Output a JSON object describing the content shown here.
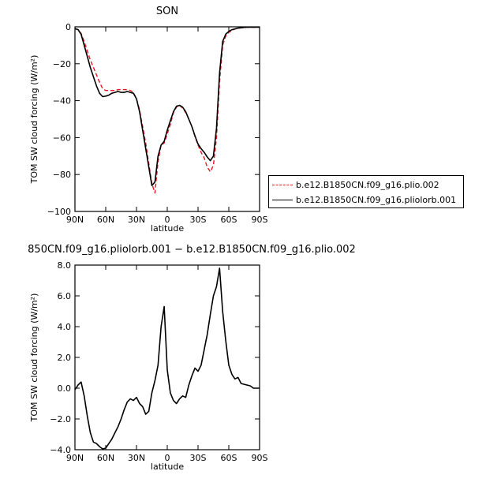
{
  "figure": {
    "title": "SON",
    "diff_title": "850CN.f09_g16.pliolorb.001 − b.e12.B1850CN.f09_g16.plio.002"
  },
  "legend": {
    "items": [
      {
        "label": "b.e12.B1850CN.f09_g16.plio.002",
        "style": "dashed",
        "color": "#e8141e"
      },
      {
        "label": "b.e12.B1850CN.f09_g16.pliolorb.001",
        "style": "solid",
        "color": "#000000"
      }
    ]
  },
  "chart_data": [
    {
      "type": "line",
      "title": "SON",
      "xlabel": "latitude",
      "ylabel": "TOM SW cloud forcing (W/m²)",
      "xlim": [
        90,
        -90
      ],
      "ylim": [
        -100,
        0
      ],
      "xticks": [
        90,
        60,
        30,
        0,
        -30,
        -60,
        -90
      ],
      "xtick_labels": [
        "90N",
        "60N",
        "30N",
        "0",
        "30S",
        "60S",
        "90S"
      ],
      "yticks": [
        -100,
        -80,
        -60,
        -40,
        -20,
        0
      ],
      "ytick_labels": [
        "−100",
        "−80",
        "−60",
        "−40",
        "−20",
        "0"
      ],
      "x": [
        90,
        87,
        84,
        81,
        78,
        75,
        72,
        69,
        66,
        63,
        60,
        57,
        54,
        51,
        48,
        45,
        42,
        39,
        36,
        33,
        30,
        27,
        24,
        21,
        18,
        15,
        12,
        9,
        6,
        3,
        0,
        -3,
        -6,
        -9,
        -12,
        -15,
        -18,
        -21,
        -24,
        -27,
        -30,
        -33,
        -36,
        -39,
        -42,
        -45,
        -48,
        -51,
        -54,
        -57,
        -60,
        -63,
        -66,
        -69,
        -72,
        -75,
        -78,
        -81,
        -84,
        -87,
        -90
      ],
      "series": [
        {
          "name": "b.e12.B1850CN.f09_g16.plio.002",
          "color": "#e8141e",
          "dash": true,
          "values": [
            -1,
            -1.5,
            -3.5,
            -8,
            -13,
            -18,
            -22,
            -26,
            -30,
            -33.5,
            -34.5,
            -34.5,
            -34.5,
            -34.5,
            -34,
            -34,
            -34,
            -34,
            -34.5,
            -35.5,
            -39,
            -45,
            -54,
            -63,
            -74,
            -85,
            -90,
            -73,
            -64,
            -63,
            -58,
            -53,
            -46.5,
            -43.5,
            -42.5,
            -44,
            -46.5,
            -50,
            -54,
            -59.5,
            -64,
            -68,
            -71,
            -76,
            -78.5,
            -75,
            -60,
            -30,
            -10,
            -5,
            -3,
            -2,
            -1.2,
            -0.8,
            -0.5,
            -0.3,
            -0.2,
            -0.2,
            -0.2,
            -0.2,
            -0.2
          ]
        },
        {
          "name": "b.e12.B1850CN.f09_g16.pliolorb.001",
          "color": "#000000",
          "dash": false,
          "values": [
            -1,
            -1.5,
            -4,
            -10,
            -16,
            -22,
            -27,
            -32,
            -36,
            -37.8,
            -37.5,
            -37,
            -36,
            -35.5,
            -35,
            -35.5,
            -35.5,
            -35,
            -35.5,
            -36,
            -39,
            -46,
            -56,
            -66,
            -76,
            -86,
            -84,
            -70,
            -64,
            -62,
            -56,
            -51,
            -46,
            -43,
            -42.5,
            -43.5,
            -46,
            -50,
            -54,
            -59,
            -63.5,
            -66,
            -68,
            -70.5,
            -72.5,
            -70,
            -55,
            -25,
            -8,
            -4,
            -2.5,
            -1.6,
            -1.1,
            -0.7,
            -0.5,
            -0.3,
            -0.2,
            -0.2,
            -0.2,
            -0.2,
            -0.2
          ]
        }
      ]
    },
    {
      "type": "line",
      "title": "850CN.f09_g16.pliolorb.001 − b.e12.B1850CN.f09_g16.plio.002",
      "xlabel": "latitude",
      "ylabel": "TOM SW cloud forcing (W/m²)",
      "xlim": [
        90,
        -90
      ],
      "ylim": [
        -4,
        8
      ],
      "xticks": [
        90,
        60,
        30,
        0,
        -30,
        -60,
        -90
      ],
      "xtick_labels": [
        "90N",
        "60N",
        "30N",
        "0",
        "30S",
        "60S",
        "90S"
      ],
      "yticks": [
        -4,
        -2,
        0,
        2,
        4,
        6,
        8
      ],
      "ytick_labels": [
        "−4.0",
        "−2.0",
        "0.0",
        "2.0",
        "4.0",
        "6.0",
        "8.0"
      ],
      "x": [
        90,
        87,
        84,
        81,
        78,
        75,
        72,
        69,
        66,
        63,
        60,
        57,
        54,
        51,
        48,
        45,
        42,
        39,
        36,
        33,
        30,
        27,
        24,
        21,
        18,
        15,
        12,
        9,
        6,
        3,
        0,
        -3,
        -6,
        -9,
        -12,
        -15,
        -18,
        -21,
        -24,
        -27,
        -30,
        -33,
        -36,
        -39,
        -42,
        -45,
        -48,
        -51,
        -54,
        -57,
        -60,
        -63,
        -66,
        -69,
        -72,
        -75,
        -78,
        -81,
        -84,
        -87,
        -90
      ],
      "series": [
        {
          "name": "",
          "color": "#000000",
          "dash": false,
          "values": [
            -0.1,
            0.2,
            0.4,
            -0.5,
            -1.8,
            -2.9,
            -3.5,
            -3.6,
            -3.8,
            -3.95,
            -3.9,
            -3.6,
            -3.3,
            -2.9,
            -2.5,
            -2.0,
            -1.4,
            -0.9,
            -0.7,
            -0.8,
            -0.6,
            -1.0,
            -1.2,
            -1.7,
            -1.5,
            -0.3,
            0.5,
            1.5,
            4.0,
            5.3,
            1.2,
            -0.3,
            -0.8,
            -1.0,
            -0.7,
            -0.5,
            -0.6,
            0.2,
            0.8,
            1.3,
            1.1,
            1.5,
            2.5,
            3.5,
            4.8,
            6.0,
            6.6,
            7.8,
            5.0,
            3.1,
            1.5,
            0.9,
            0.6,
            0.7,
            0.3,
            0.25,
            0.2,
            0.15,
            0.0,
            0.0,
            0.0
          ]
        }
      ]
    }
  ]
}
